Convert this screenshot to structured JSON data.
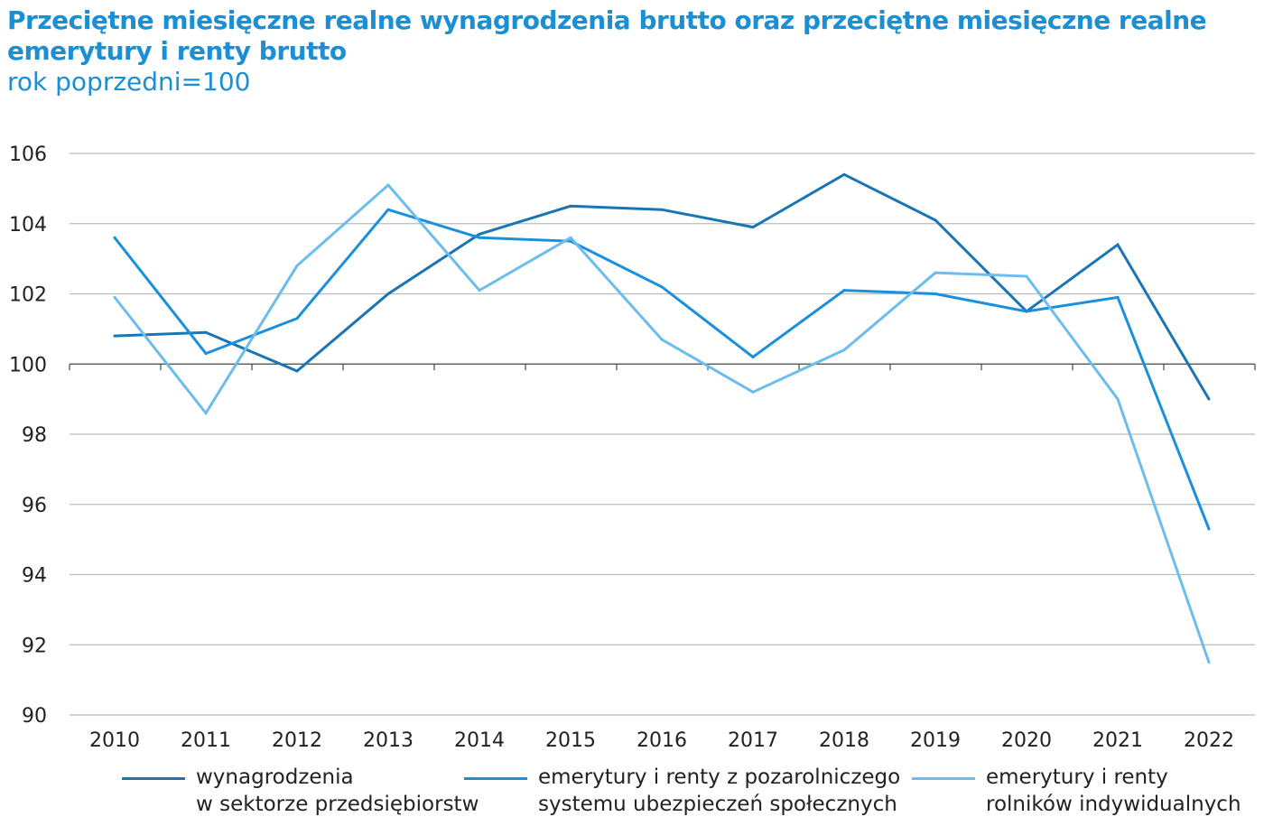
{
  "chart_data": {
    "type": "line",
    "title": "Przeciętne miesięczne realne wynagrodzenia brutto oraz przeciętne miesięczne realne emerytury i renty brutto",
    "subtitle": "rok poprzedni=100",
    "xlabel": "",
    "ylabel": "",
    "categories": [
      "2010",
      "2011",
      "2012",
      "2013",
      "2014",
      "2015",
      "2016",
      "2017",
      "2018",
      "2019",
      "2020",
      "2021",
      "2022"
    ],
    "ylim": [
      90,
      106
    ],
    "yticks": [
      90,
      92,
      94,
      96,
      98,
      100,
      102,
      104,
      106
    ],
    "grid": true,
    "legend_position": "bottom",
    "series": [
      {
        "name": "wynagrodzenia w sektorze przedsiębiorstw",
        "line1": "wynagrodzenia",
        "line2": "w sektorze przedsiębiorstw",
        "color": "#1a75b5",
        "values": [
          100.8,
          100.9,
          99.8,
          102.0,
          103.7,
          104.5,
          104.4,
          103.9,
          105.4,
          104.1,
          101.5,
          103.4,
          99.0
        ]
      },
      {
        "name": "emerytury i renty z pozarolniczego systemu ubezpieczeń społecznych",
        "line1": "emerytury i renty z pozarolniczego",
        "line2": "systemu ubezpieczeń społecznych",
        "color": "#1a90dc",
        "values": [
          103.6,
          100.3,
          101.3,
          104.4,
          103.6,
          103.5,
          102.2,
          100.2,
          102.1,
          102.0,
          101.5,
          101.9,
          95.3
        ]
      },
      {
        "name": "emerytury i renty rolników indywidualnych",
        "line1": "emerytury i renty",
        "line2": "rolników indywidualnych",
        "color": "#6cbdee",
        "values": [
          101.9,
          98.6,
          102.8,
          105.1,
          102.1,
          103.6,
          100.7,
          99.2,
          100.4,
          102.6,
          102.5,
          99.0,
          91.5
        ]
      }
    ]
  }
}
